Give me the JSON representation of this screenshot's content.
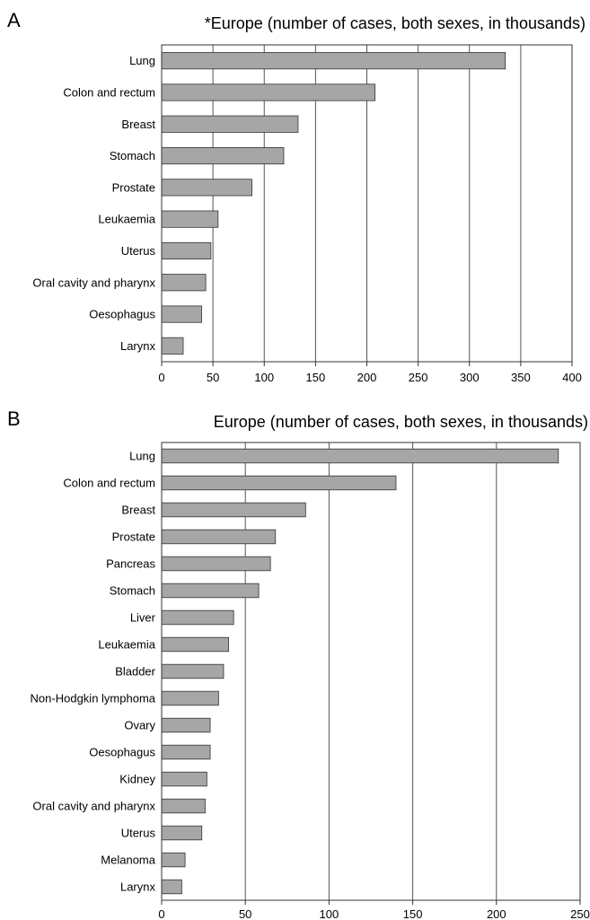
{
  "chart_data": [
    {
      "type": "bar",
      "orientation": "horizontal",
      "panel": "A",
      "title": "*Europe (number of cases, both sexes, in thousands)",
      "categories": [
        "Lung",
        "Colon and rectum",
        "Breast",
        "Stomach",
        "Prostate",
        "Leukaemia",
        "Uterus",
        "Oral cavity and pharynx",
        "Oesophagus",
        "Larynx"
      ],
      "values": [
        335,
        208,
        133,
        119,
        88,
        55,
        48,
        43,
        39,
        21
      ],
      "xlim": [
        0,
        400
      ],
      "xticks": [
        0,
        50,
        100,
        150,
        200,
        250,
        300,
        350,
        400
      ],
      "grid": "vertical",
      "bar_color": "#a6a6a6",
      "xlabel": "",
      "ylabel": ""
    },
    {
      "type": "bar",
      "orientation": "horizontal",
      "panel": "B",
      "title": "Europe (number of cases, both sexes, in thousands)",
      "categories": [
        "Lung",
        "Colon and rectum",
        "Breast",
        "Prostate",
        "Pancreas",
        "Stomach",
        "Liver",
        "Leukaemia",
        "Bladder",
        "Non-Hodgkin lymphoma",
        "Ovary",
        "Oesophagus",
        "Kidney",
        "Oral cavity and pharynx",
        "Uterus",
        "Melanoma",
        "Larynx"
      ],
      "values": [
        237,
        140,
        86,
        68,
        65,
        58,
        43,
        40,
        37,
        34,
        29,
        29,
        27,
        26,
        24,
        14,
        12
      ],
      "xlim": [
        0,
        250
      ],
      "xticks": [
        0,
        50,
        100,
        150,
        200,
        250
      ],
      "grid": "vertical",
      "bar_color": "#a6a6a6",
      "xlabel": "",
      "ylabel": ""
    }
  ]
}
